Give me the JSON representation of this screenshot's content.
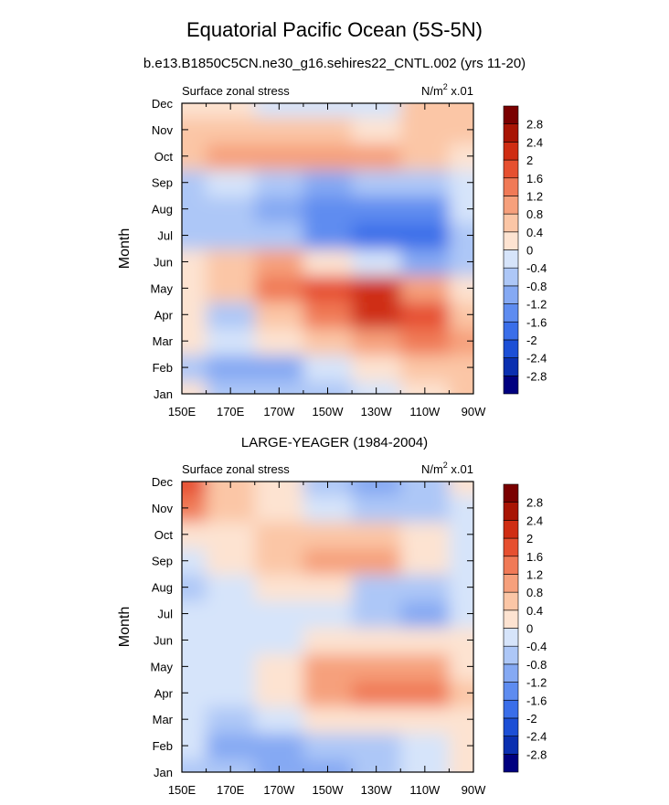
{
  "figure": {
    "title": "Equatorial Pacific Ocean (5S-5N)",
    "subtitle": "b.e13.B1850C5CN.ne30_g16.sehires22_CNTL.002 (yrs 11-20)"
  },
  "colorbar": {
    "levels": [
      -2.8,
      -2.4,
      -2,
      -1.6,
      -1.2,
      -0.8,
      -0.4,
      0,
      0.4,
      0.8,
      1.2,
      1.6,
      2,
      2.4,
      2.8
    ],
    "labels": [
      "-2.8",
      "-2.4",
      "-2",
      "-1.6",
      "-1.2",
      "-0.8",
      "-0.4",
      "0",
      "0.4",
      "0.8",
      "1.2",
      "1.6",
      "2",
      "2.4",
      "2.8"
    ],
    "colors": [
      "#00007f",
      "#0a2fb0",
      "#1c4fd6",
      "#3a6ee9",
      "#5e8cf0",
      "#85a9f3",
      "#adc7f7",
      "#d6e4fa",
      "#fde3d1",
      "#fbc6a6",
      "#f6a07c",
      "#f07a57",
      "#e65030",
      "#cf2d13",
      "#a81404",
      "#7a0000"
    ]
  },
  "chart_data": [
    {
      "type": "heatmap",
      "title": "b.e13.B1850C5CN.ne30_g16.sehires22_CNTL.002 (yrs 11-20)",
      "left_label": "Surface zonal stress",
      "units_base": "N/m",
      "units_sup": "2",
      "units_scale": " x.01",
      "ylabel": "Month",
      "xlabel": "",
      "x": [
        "150E",
        "170E",
        "170W",
        "150W",
        "130W",
        "110W",
        "90W"
      ],
      "x_lon": [
        150,
        170,
        190,
        210,
        230,
        250,
        270
      ],
      "y": [
        "Jan",
        "Feb",
        "Mar",
        "Apr",
        "May",
        "Jun",
        "Jul",
        "Aug",
        "Sep",
        "Oct",
        "Nov",
        "Dec"
      ],
      "xlim": [
        150,
        270
      ],
      "values": [
        [
          0.0,
          -0.5,
          -0.7,
          -0.5,
          -0.2,
          0.2,
          0.5
        ],
        [
          -0.6,
          -1.1,
          -0.9,
          -0.4,
          0.1,
          0.6,
          0.6
        ],
        [
          0.2,
          -0.2,
          0.2,
          0.7,
          1.0,
          1.3,
          0.9
        ],
        [
          0.1,
          -0.5,
          0.4,
          1.5,
          2.0,
          1.8,
          0.6
        ],
        [
          0.1,
          0.5,
          1.3,
          1.9,
          2.0,
          1.1,
          0.3
        ],
        [
          0.3,
          0.6,
          0.8,
          0.3,
          -0.3,
          -1.2,
          -0.7
        ],
        [
          -0.8,
          -0.5,
          -0.6,
          -1.3,
          -1.9,
          -1.9,
          -0.8
        ],
        [
          -0.8,
          -0.6,
          -0.9,
          -1.5,
          -1.6,
          -1.3,
          -0.4
        ],
        [
          -0.5,
          -0.4,
          -0.8,
          -0.9,
          -0.7,
          -0.5,
          -0.2
        ],
        [
          0.4,
          0.9,
          0.8,
          0.9,
          0.8,
          0.5,
          0.2
        ],
        [
          0.5,
          0.6,
          0.6,
          0.4,
          0.3,
          0.4,
          0.5
        ],
        [
          0.3,
          0.1,
          -0.2,
          -0.3,
          -0.1,
          0.4,
          0.7
        ]
      ]
    },
    {
      "type": "heatmap",
      "title": "LARGE-YEAGER (1984-2004)",
      "left_label": "Surface zonal stress",
      "units_base": "N/m",
      "units_sup": "2",
      "units_scale": " x.01",
      "ylabel": "Month",
      "xlabel": "",
      "x": [
        "150E",
        "170E",
        "170W",
        "150W",
        "130W",
        "110W",
        "90W"
      ],
      "x_lon": [
        150,
        170,
        190,
        210,
        230,
        250,
        270
      ],
      "y": [
        "Jan",
        "Feb",
        "Mar",
        "Apr",
        "May",
        "Jun",
        "Jul",
        "Aug",
        "Sep",
        "Oct",
        "Nov",
        "Dec"
      ],
      "xlim": [
        150,
        270
      ],
      "values": [
        [
          -0.5,
          -0.8,
          -1.0,
          -1.0,
          -0.8,
          -0.4,
          0.0
        ],
        [
          -0.4,
          -1.1,
          -0.9,
          -0.8,
          -0.6,
          -0.3,
          0.0
        ],
        [
          -0.3,
          -0.6,
          -0.4,
          0.0,
          0.3,
          0.2,
          0.1
        ],
        [
          -0.2,
          -0.4,
          0.3,
          1.1,
          1.4,
          1.3,
          0.4
        ],
        [
          -0.2,
          -0.4,
          0.2,
          0.8,
          1.1,
          0.9,
          0.3
        ],
        [
          -0.2,
          -0.4,
          -0.2,
          0.1,
          0.1,
          0.0,
          0.0
        ],
        [
          -0.3,
          -0.2,
          -0.1,
          -0.4,
          -0.7,
          -0.9,
          -0.2
        ],
        [
          -0.6,
          -0.2,
          0.2,
          0.1,
          -0.5,
          -0.6,
          -0.3
        ],
        [
          -0.3,
          0.1,
          0.4,
          0.8,
          0.9,
          0.2,
          -0.2
        ],
        [
          0.2,
          0.2,
          0.4,
          0.7,
          0.6,
          0.1,
          -0.2
        ],
        [
          1.3,
          0.6,
          0.1,
          -0.4,
          -0.8,
          -0.6,
          -0.1
        ],
        [
          1.6,
          0.7,
          0.0,
          -0.6,
          -1.2,
          -0.8,
          0.1
        ]
      ]
    }
  ]
}
